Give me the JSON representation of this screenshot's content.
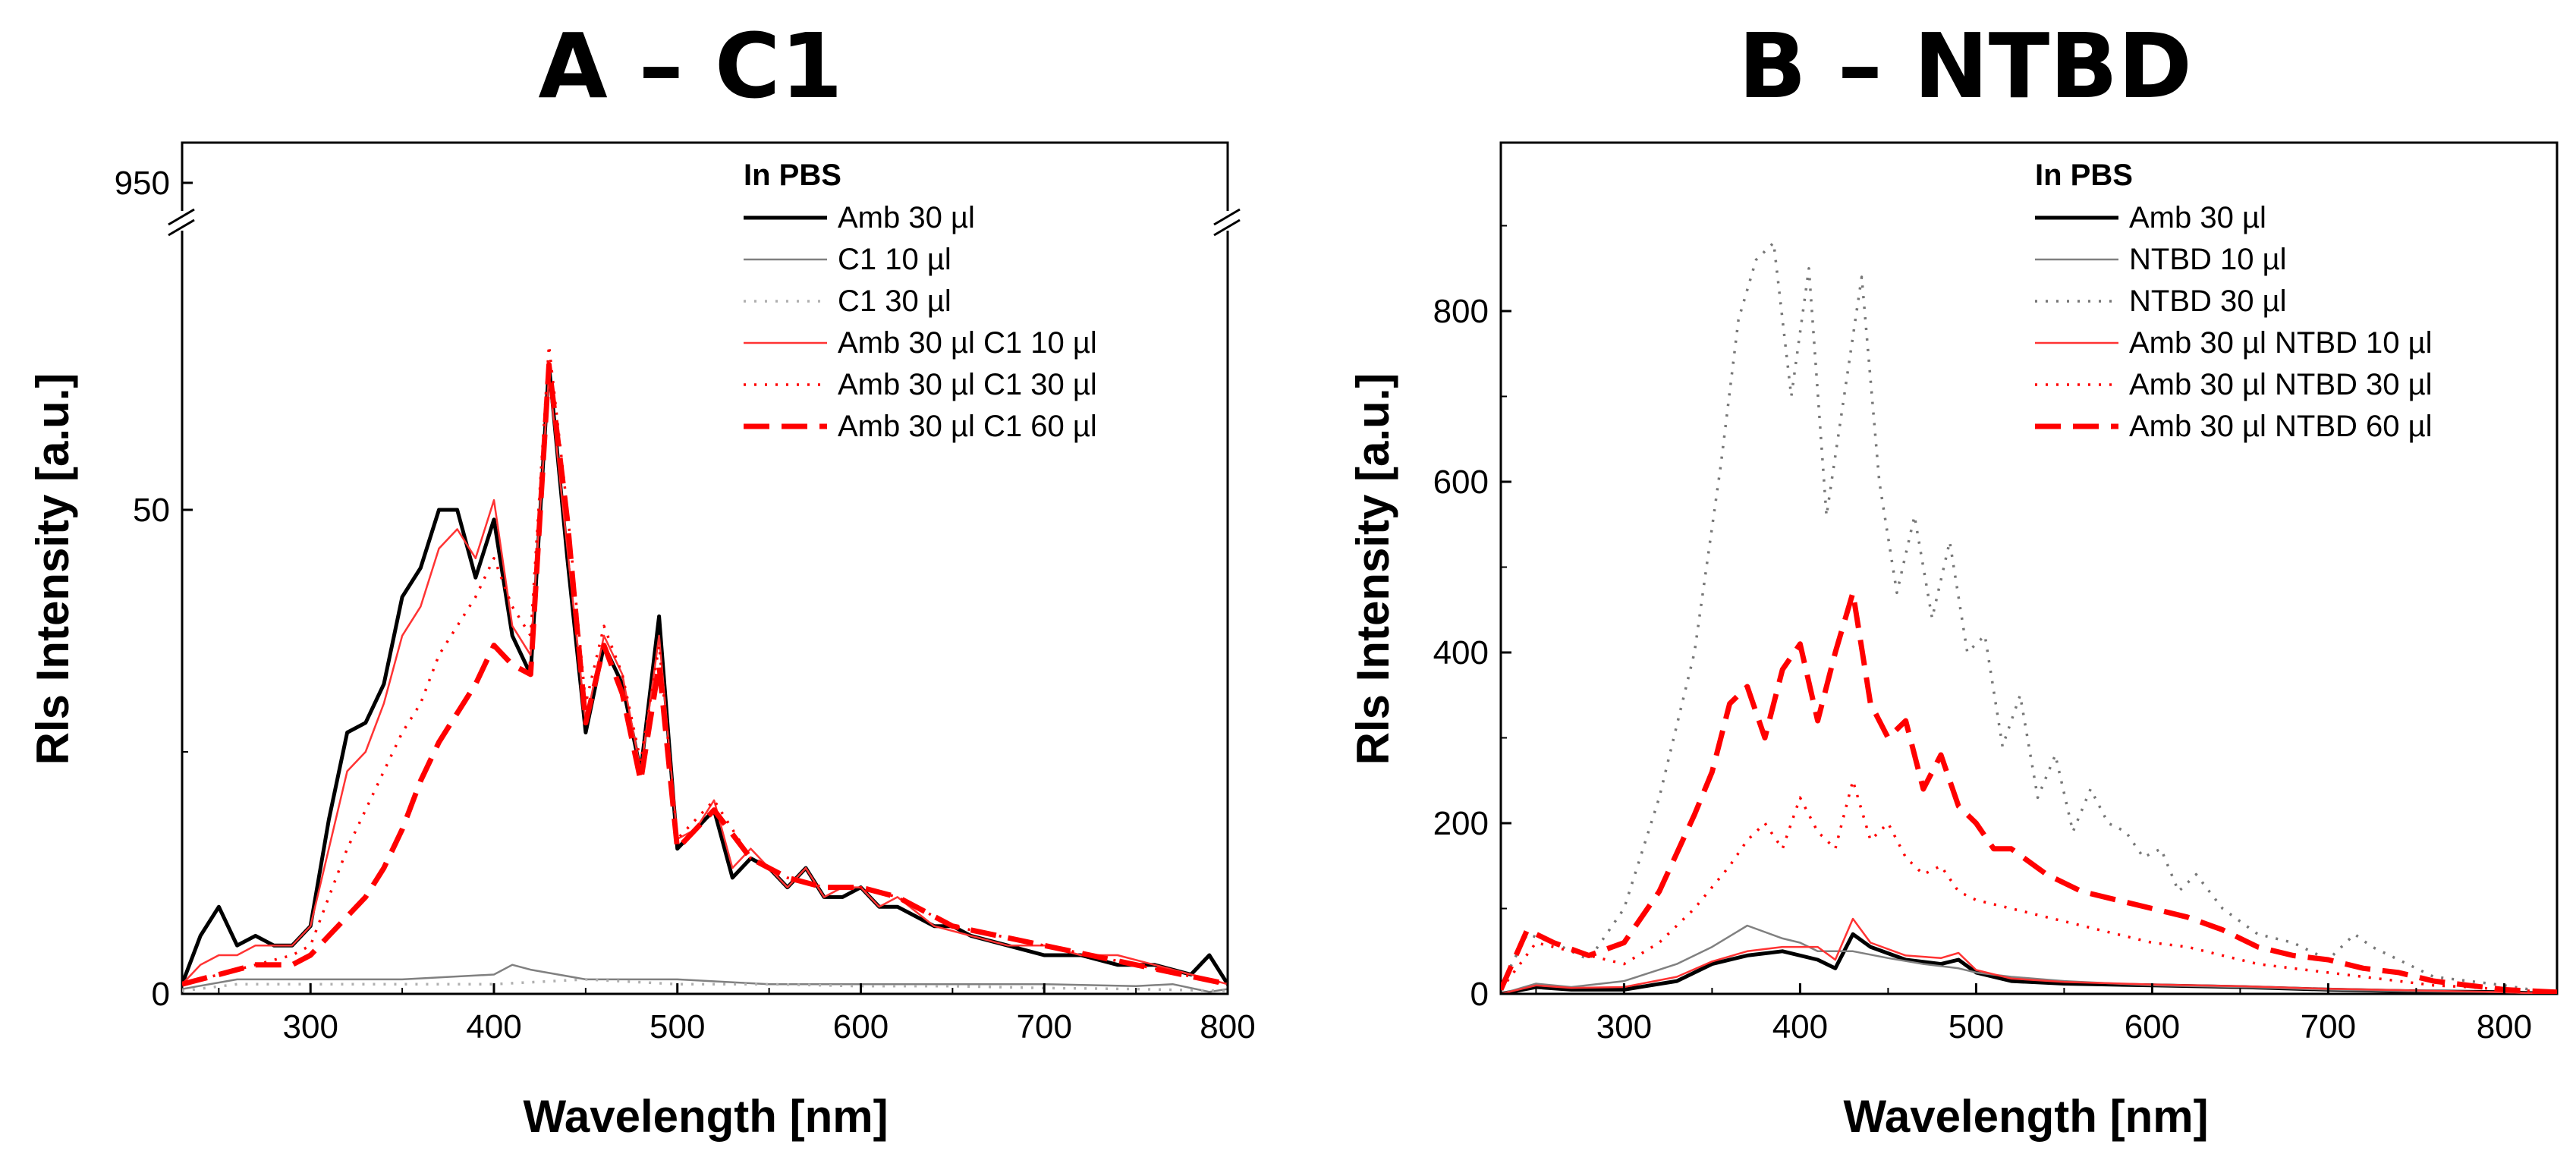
{
  "chart_data": [
    {
      "type": "line",
      "title": "A – C1",
      "xlabel": "Wavelength [nm]",
      "ylabel": "Rls Intensity [a.u.]",
      "xlim": [
        230,
        800
      ],
      "ylim": [
        0,
        100
      ],
      "axis_break": {
        "lower_max": 68,
        "upper_min": 940,
        "upper_tick": 950
      },
      "x_ticks": [
        300,
        400,
        500,
        600,
        700,
        800
      ],
      "x_tick_labels": [
        "300",
        "400",
        "500",
        "600",
        "700",
        "800"
      ],
      "y_ticks": [
        0,
        50,
        950
      ],
      "y_tick_labels": [
        "0",
        "50",
        "950"
      ],
      "legend_title": "In PBS",
      "legend_position": "top-right",
      "series": [
        {
          "name": "Amb 30 µl",
          "color": "#000000",
          "style": "solid-thick",
          "x": [
            230,
            240,
            250,
            260,
            270,
            280,
            290,
            300,
            310,
            320,
            330,
            340,
            350,
            360,
            370,
            380,
            390,
            400,
            410,
            420,
            430,
            440,
            450,
            460,
            470,
            480,
            490,
            500,
            510,
            520,
            530,
            540,
            550,
            560,
            570,
            580,
            590,
            600,
            610,
            620,
            630,
            640,
            650,
            660,
            680,
            700,
            720,
            740,
            760,
            780,
            790,
            800
          ],
          "y": [
            1,
            6,
            9,
            5,
            6,
            5,
            5,
            7,
            18,
            27,
            28,
            32,
            41,
            44,
            50,
            50,
            43,
            49,
            37,
            33,
            65,
            45,
            27,
            36,
            32,
            23,
            39,
            15,
            17,
            19,
            12,
            14,
            13,
            11,
            13,
            10,
            10,
            11,
            9,
            9,
            8,
            7,
            7,
            6,
            5,
            4,
            4,
            3,
            3,
            2,
            4,
            1
          ]
        },
        {
          "name": "C1 10 µl",
          "color": "#808080",
          "style": "solid-thin",
          "x": [
            230,
            260,
            300,
            350,
            400,
            410,
            420,
            450,
            500,
            550,
            600,
            650,
            700,
            750,
            770,
            790,
            800
          ],
          "y": [
            0.5,
            1.5,
            1.5,
            1.5,
            2,
            3,
            2.5,
            1.5,
            1.5,
            1,
            1,
            1,
            1,
            0.8,
            1,
            0.2,
            0.5
          ]
        },
        {
          "name": "C1 30 µl",
          "color": "#b0b0b0",
          "style": "dotted",
          "x": [
            230,
            260,
            300,
            350,
            400,
            450,
            500,
            550,
            600,
            650,
            700,
            750,
            800
          ],
          "y": [
            0.3,
            1,
            1,
            1,
            1,
            1.5,
            1,
            1,
            0.8,
            0.8,
            0.6,
            0.5,
            0.3
          ]
        },
        {
          "name": "Amb 30 µl C1 10 µl",
          "color": "#ff3333",
          "style": "solid-thin",
          "x": [
            230,
            240,
            250,
            260,
            270,
            280,
            290,
            300,
            310,
            320,
            330,
            340,
            350,
            360,
            370,
            380,
            390,
            400,
            410,
            420,
            430,
            440,
            450,
            460,
            470,
            480,
            490,
            500,
            510,
            520,
            530,
            540,
            550,
            560,
            570,
            580,
            590,
            600,
            610,
            620,
            640,
            660,
            680,
            700,
            720,
            740,
            760,
            780,
            800
          ],
          "y": [
            1,
            3,
            4,
            4,
            5,
            5,
            5,
            7,
            15,
            23,
            25,
            30,
            37,
            40,
            46,
            48,
            45,
            51,
            38,
            35,
            64,
            46,
            28,
            37,
            33,
            23,
            37,
            16,
            17,
            20,
            13,
            15,
            13,
            11,
            13,
            10,
            11,
            11,
            9,
            10,
            7,
            6,
            5,
            5,
            4,
            4,
            3,
            2,
            1
          ]
        },
        {
          "name": "Amb 30 µl C1 30 µl",
          "color": "#ff0000",
          "style": "dotted",
          "x": [
            230,
            250,
            270,
            290,
            300,
            310,
            320,
            330,
            340,
            350,
            360,
            370,
            380,
            390,
            400,
            410,
            420,
            430,
            440,
            450,
            460,
            470,
            480,
            490,
            500,
            510,
            520,
            540,
            560,
            580,
            600,
            620,
            650,
            700,
            750,
            800
          ],
          "y": [
            1,
            2,
            3,
            4,
            5,
            10,
            15,
            19,
            23,
            27,
            30,
            35,
            38,
            41,
            45,
            40,
            37,
            67,
            50,
            30,
            38,
            33,
            24,
            36,
            16,
            18,
            20,
            14,
            12,
            11,
            11,
            10,
            7,
            5,
            3,
            1
          ]
        },
        {
          "name": "Amb 30 µl C1 60 µl",
          "color": "#ff0000",
          "style": "dashed",
          "x": [
            230,
            250,
            270,
            290,
            300,
            310,
            320,
            330,
            340,
            350,
            360,
            370,
            380,
            390,
            400,
            410,
            420,
            430,
            440,
            450,
            460,
            470,
            480,
            490,
            500,
            510,
            520,
            540,
            560,
            580,
            600,
            620,
            650,
            700,
            750,
            800
          ],
          "y": [
            1,
            2,
            3,
            3,
            4,
            6,
            8,
            10,
            13,
            17,
            22,
            26,
            29,
            32,
            36,
            34,
            33,
            65,
            49,
            28,
            36,
            31,
            22,
            34,
            15,
            17,
            19,
            14,
            12,
            11,
            11,
            10,
            7,
            5,
            3,
            1
          ]
        }
      ]
    },
    {
      "type": "line",
      "title": "B – NTBD",
      "xlabel": "Wavelength [nm]",
      "ylabel": "Rls Intensity [a.u.]",
      "xlim": [
        230,
        830
      ],
      "ylim": [
        0,
        960
      ],
      "x_ticks": [
        300,
        400,
        500,
        600,
        700,
        800
      ],
      "x_tick_labels": [
        "300",
        "400",
        "500",
        "600",
        "700",
        "800"
      ],
      "y_ticks": [
        0,
        200,
        400,
        600,
        800
      ],
      "y_tick_labels": [
        "0",
        "200",
        "400",
        "600",
        "800"
      ],
      "legend_title": "In PBS",
      "legend_position": "top-right",
      "series": [
        {
          "name": "Amb 30 µl",
          "color": "#000000",
          "style": "solid-thick",
          "x": [
            230,
            250,
            270,
            300,
            330,
            350,
            370,
            390,
            410,
            420,
            430,
            440,
            460,
            480,
            490,
            500,
            520,
            550,
            600,
            650,
            700,
            750,
            800,
            830
          ],
          "y": [
            0,
            8,
            5,
            5,
            15,
            35,
            45,
            50,
            40,
            30,
            70,
            55,
            40,
            35,
            40,
            25,
            15,
            12,
            10,
            8,
            5,
            3,
            2,
            0
          ]
        },
        {
          "name": "NTBD 10 µl",
          "color": "#808080",
          "style": "solid-thin",
          "x": [
            230,
            250,
            270,
            300,
            330,
            350,
            370,
            390,
            400,
            410,
            430,
            450,
            470,
            490,
            500,
            520,
            550,
            600,
            650,
            700,
            750,
            800,
            830
          ],
          "y": [
            0,
            12,
            8,
            15,
            35,
            55,
            80,
            65,
            60,
            50,
            50,
            42,
            35,
            30,
            25,
            20,
            15,
            10,
            8,
            5,
            3,
            2,
            0
          ]
        },
        {
          "name": "NTBD 30 µl",
          "color": "#777777",
          "style": "dotted",
          "x": [
            230,
            245,
            260,
            280,
            300,
            320,
            340,
            355,
            365,
            375,
            385,
            395,
            405,
            415,
            425,
            435,
            445,
            455,
            465,
            475,
            485,
            495,
            505,
            515,
            525,
            535,
            545,
            555,
            565,
            575,
            585,
            595,
            605,
            615,
            625,
            640,
            660,
            680,
            700,
            715,
            725,
            740,
            760,
            780,
            800,
            815,
            830
          ],
          "y": [
            10,
            70,
            60,
            40,
            100,
            230,
            400,
            620,
            790,
            860,
            880,
            700,
            850,
            560,
            700,
            840,
            600,
            470,
            560,
            440,
            530,
            400,
            420,
            290,
            350,
            230,
            280,
            190,
            240,
            200,
            190,
            160,
            170,
            120,
            140,
            100,
            70,
            60,
            40,
            70,
            55,
            40,
            20,
            15,
            10,
            5,
            2
          ]
        },
        {
          "name": "Amb 30 µl NTBD 10 µl",
          "color": "#ff3333",
          "style": "solid-thin",
          "x": [
            230,
            250,
            270,
            300,
            330,
            350,
            370,
            390,
            410,
            420,
            430,
            440,
            460,
            480,
            490,
            500,
            520,
            550,
            600,
            650,
            700,
            750,
            800,
            830
          ],
          "y": [
            0,
            10,
            7,
            8,
            20,
            38,
            50,
            55,
            55,
            40,
            88,
            60,
            45,
            42,
            48,
            28,
            18,
            14,
            11,
            9,
            6,
            4,
            2,
            0
          ]
        },
        {
          "name": "Amb 30 µl NTBD 30 µl",
          "color": "#ff0000",
          "style": "dotted",
          "x": [
            230,
            250,
            270,
            300,
            320,
            340,
            360,
            370,
            380,
            390,
            400,
            410,
            420,
            430,
            440,
            450,
            460,
            470,
            480,
            490,
            500,
            520,
            540,
            560,
            580,
            600,
            620,
            640,
            660,
            680,
            700,
            720,
            740,
            760,
            780,
            800,
            830
          ],
          "y": [
            5,
            60,
            50,
            35,
            60,
            100,
            150,
            180,
            200,
            170,
            230,
            190,
            170,
            250,
            180,
            200,
            160,
            140,
            150,
            120,
            110,
            100,
            90,
            80,
            70,
            60,
            55,
            45,
            35,
            30,
            25,
            20,
            15,
            10,
            8,
            5,
            2
          ]
        },
        {
          "name": "Amb 30 µl NTBD 60 µl",
          "color": "#ff0000",
          "style": "dashed",
          "x": [
            230,
            245,
            260,
            280,
            300,
            320,
            340,
            350,
            360,
            370,
            380,
            390,
            400,
            410,
            420,
            430,
            440,
            450,
            460,
            470,
            480,
            490,
            500,
            510,
            520,
            540,
            560,
            580,
            600,
            620,
            640,
            660,
            680,
            700,
            720,
            740,
            760,
            780,
            800,
            830
          ],
          "y": [
            5,
            75,
            60,
            45,
            60,
            120,
            210,
            260,
            340,
            360,
            300,
            380,
            410,
            320,
            400,
            470,
            340,
            300,
            320,
            240,
            280,
            220,
            200,
            170,
            170,
            140,
            120,
            110,
            100,
            90,
            75,
            55,
            45,
            40,
            30,
            25,
            15,
            10,
            5,
            2
          ]
        }
      ]
    }
  ]
}
